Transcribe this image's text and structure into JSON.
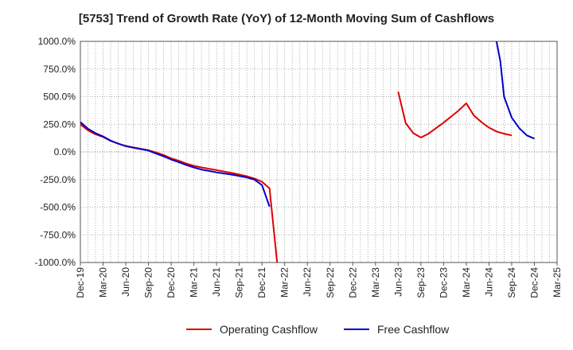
{
  "chart_data": {
    "type": "line",
    "title": "[5753]  Trend of Growth Rate (YoY) of 12-Month Moving Sum of Cashflows",
    "xlabel": "",
    "ylabel": "",
    "ylim": [
      -1000,
      1000
    ],
    "y_ticks": [
      1000,
      750,
      500,
      250,
      0,
      -250,
      -500,
      -750,
      -1000
    ],
    "y_tick_labels": [
      "1000.0%",
      "750.0%",
      "500.0%",
      "250.0%",
      "0.0%",
      "-250.0%",
      "-500.0%",
      "-750.0%",
      "-1000.0%"
    ],
    "x_tick_labels": [
      "Dec-19",
      "Mar-20",
      "Jun-20",
      "Sep-20",
      "Dec-20",
      "Mar-21",
      "Jun-21",
      "Sep-21",
      "Dec-21",
      "Mar-22",
      "Jun-22",
      "Sep-22",
      "Dec-22",
      "Mar-23",
      "Jun-23",
      "Sep-23",
      "Dec-23",
      "Mar-24",
      "Jun-24",
      "Sep-24",
      "Dec-24",
      "Mar-25"
    ],
    "grid": true,
    "legend_position": "bottom",
    "series": [
      {
        "name": "Operating Cashflow",
        "color": "#e00000",
        "points": [
          [
            0,
            250
          ],
          [
            1,
            195
          ],
          [
            2,
            160
          ],
          [
            3,
            135
          ],
          [
            4,
            100
          ],
          [
            5,
            75
          ],
          [
            6,
            55
          ],
          [
            7,
            40
          ],
          [
            8,
            28
          ],
          [
            9,
            15
          ],
          [
            10,
            -5
          ],
          [
            11,
            -28
          ],
          [
            12,
            -58
          ],
          [
            13,
            -80
          ],
          [
            14,
            -105
          ],
          [
            15,
            -125
          ],
          [
            16,
            -140
          ],
          [
            17,
            -152
          ],
          [
            18,
            -165
          ],
          [
            19,
            -178
          ],
          [
            20,
            -190
          ],
          [
            21,
            -205
          ],
          [
            22,
            -220
          ],
          [
            23,
            -240
          ],
          [
            24,
            -270
          ],
          [
            25,
            -330
          ],
          [
            26,
            -1000
          ],
          [
            null,
            null
          ],
          [
            42,
            545
          ],
          [
            43,
            260
          ],
          [
            44,
            170
          ],
          [
            45,
            130
          ],
          [
            46,
            165
          ],
          [
            47,
            215
          ],
          [
            48,
            265
          ],
          [
            49,
            320
          ],
          [
            50,
            375
          ],
          [
            51,
            440
          ],
          [
            52,
            330
          ],
          [
            53,
            270
          ],
          [
            54,
            220
          ],
          [
            55,
            185
          ],
          [
            56,
            165
          ],
          [
            57,
            150
          ]
        ]
      },
      {
        "name": "Free Cashflow",
        "color": "#0000cc",
        "points": [
          [
            0,
            270
          ],
          [
            1,
            210
          ],
          [
            2,
            170
          ],
          [
            3,
            140
          ],
          [
            4,
            102
          ],
          [
            5,
            75
          ],
          [
            6,
            52
          ],
          [
            7,
            38
          ],
          [
            8,
            25
          ],
          [
            9,
            12
          ],
          [
            10,
            -15
          ],
          [
            11,
            -40
          ],
          [
            12,
            -68
          ],
          [
            13,
            -92
          ],
          [
            14,
            -118
          ],
          [
            15,
            -140
          ],
          [
            16,
            -160
          ],
          [
            17,
            -172
          ],
          [
            18,
            -185
          ],
          [
            19,
            -195
          ],
          [
            20,
            -205
          ],
          [
            21,
            -218
          ],
          [
            22,
            -232
          ],
          [
            23,
            -250
          ],
          [
            24,
            -300
          ],
          [
            25,
            -495
          ],
          [
            null,
            null
          ],
          [
            55,
            1000
          ],
          [
            55.5,
            820
          ],
          [
            56,
            500
          ],
          [
            57,
            310
          ],
          [
            58,
            215
          ],
          [
            59,
            150
          ],
          [
            60,
            120
          ]
        ]
      }
    ]
  }
}
